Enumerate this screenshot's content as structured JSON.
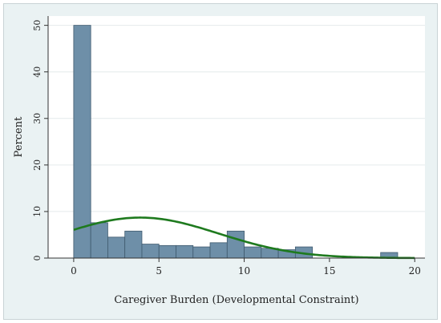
{
  "chart_data": {
    "type": "bar",
    "xlabel": "Caregiver Burden (Developmental Constraint)",
    "ylabel": "Percent",
    "xlim": [
      -1.5,
      20.6
    ],
    "ylim": [
      0,
      52
    ],
    "xticks": [
      0,
      5,
      10,
      15,
      20
    ],
    "yticks": [
      0,
      10,
      20,
      30,
      40,
      50
    ],
    "bin_width": 1.0,
    "bins": [
      {
        "start": 0,
        "value": 50.0
      },
      {
        "start": 1,
        "value": 7.6
      },
      {
        "start": 2,
        "value": 4.5
      },
      {
        "start": 3,
        "value": 5.8
      },
      {
        "start": 4,
        "value": 3.0
      },
      {
        "start": 5,
        "value": 2.7
      },
      {
        "start": 6,
        "value": 2.7
      },
      {
        "start": 7,
        "value": 2.4
      },
      {
        "start": 8,
        "value": 3.3
      },
      {
        "start": 9,
        "value": 5.8
      },
      {
        "start": 10,
        "value": 2.4
      },
      {
        "start": 11,
        "value": 2.1
      },
      {
        "start": 12,
        "value": 1.8
      },
      {
        "start": 13,
        "value": 2.4
      },
      {
        "start": 18,
        "value": 1.2
      }
    ],
    "bins_x_offset": 0.0,
    "normal_curve": {
      "mean": 3.9,
      "sd": 4.6,
      "peak_percent": 8.7,
      "color": "#1e7a1e"
    },
    "bar_fill": "#6e8fa8",
    "bar_stroke": "#3f5a6e",
    "plot_background": "#ffffff",
    "outer_background": "#eaf2f3",
    "grid": true,
    "grid_color": "#e4eaec"
  }
}
